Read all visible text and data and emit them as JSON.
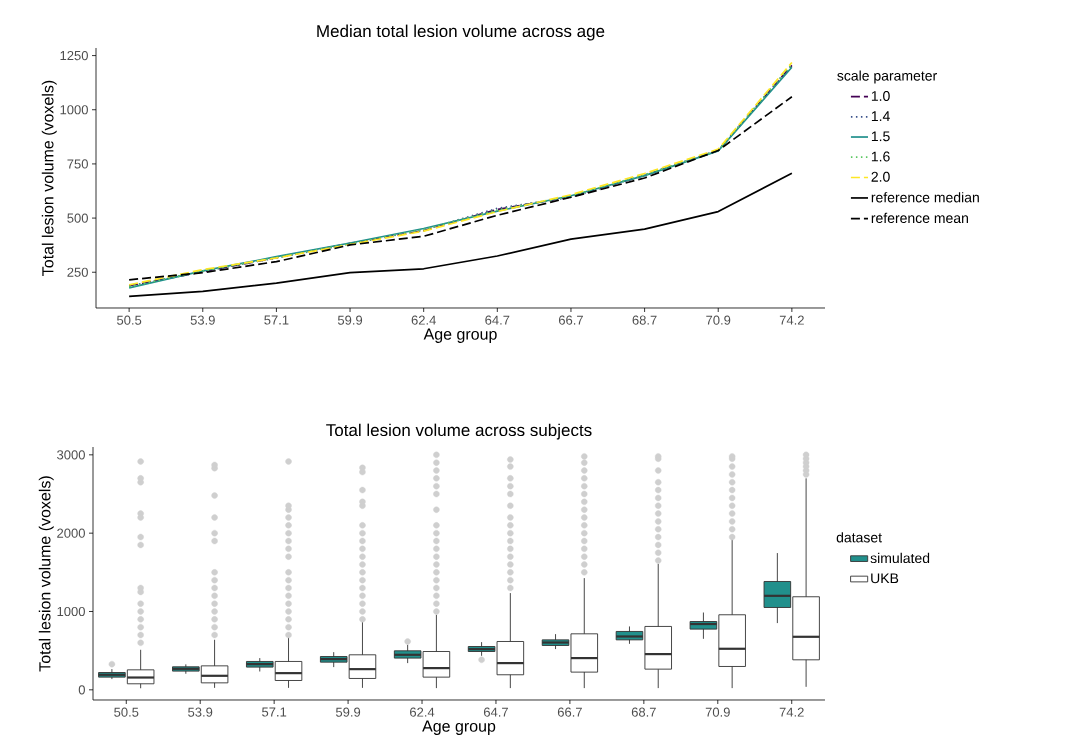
{
  "chart_data": [
    {
      "type": "line",
      "title": "Median total lesion volume across age",
      "xlabel": "Age group",
      "ylabel": "Total lesion volume (voxels)",
      "legend_title": "scale parameter",
      "legend": "right",
      "categories": [
        "50.5",
        "53.9",
        "57.1",
        "59.9",
        "62.4",
        "64.7",
        "66.7",
        "68.7",
        "70.9",
        "74.2"
      ],
      "ylim": [
        85,
        1285
      ],
      "yticks": [
        250,
        500,
        750,
        1000,
        1250
      ],
      "series": [
        {
          "name": "1.0",
          "color": "#440154",
          "line_style": "dashed",
          "values": [
            188,
            252,
            318,
            383,
            442,
            540,
            598,
            697,
            812,
            1205
          ]
        },
        {
          "name": "1.4",
          "color": "#3b528b",
          "line_style": "dotted",
          "values": [
            186,
            254,
            316,
            381,
            445,
            545,
            596,
            699,
            813,
            1207
          ]
        },
        {
          "name": "1.5",
          "color": "#21908c",
          "line_style": "solid",
          "values": [
            178,
            256,
            322,
            385,
            452,
            532,
            603,
            696,
            810,
            1196
          ]
        },
        {
          "name": "1.6",
          "color": "#5dc863",
          "line_style": "dotted",
          "values": [
            183,
            255,
            318,
            382,
            447,
            537,
            602,
            700,
            812,
            1210
          ]
        },
        {
          "name": "2.0",
          "color": "#fde725",
          "line_style": "dashed",
          "values": [
            192,
            262,
            316,
            378,
            440,
            530,
            608,
            706,
            818,
            1218
          ]
        },
        {
          "name": "reference median",
          "color": "#000000",
          "line_style": "solid",
          "values": [
            139,
            162,
            200,
            248,
            266,
            325,
            403,
            449,
            530,
            707
          ]
        },
        {
          "name": "reference mean",
          "color": "#000000",
          "line_style": "dashed",
          "values": [
            215,
            248,
            299,
            376,
            416,
            513,
            596,
            685,
            812,
            1060
          ]
        }
      ]
    },
    {
      "type": "box",
      "title": "Total lesion volume across subjects",
      "xlabel": "Age group",
      "ylabel": "Total lesion volume (voxels)",
      "legend_title": "dataset",
      "legend": "right",
      "categories": [
        "50.5",
        "53.9",
        "57.1",
        "59.9",
        "62.4",
        "64.7",
        "66.7",
        "68.7",
        "70.9",
        "74.2"
      ],
      "ylim": [
        -130,
        3100
      ],
      "yticks": [
        0,
        1000,
        2000,
        3000
      ],
      "series": [
        {
          "name": "simulated",
          "color": "#21908c",
          "boxes": [
            {
              "low": 137,
              "q1": 162,
              "median": 192,
              "q3": 221,
              "high": 264,
              "outliers": [
                328
              ]
            },
            {
              "low": 205,
              "q1": 239,
              "median": 268,
              "q3": 294,
              "high": 325
            },
            {
              "low": 234,
              "q1": 290,
              "median": 328,
              "q3": 362,
              "high": 405
            },
            {
              "low": 290,
              "q1": 353,
              "median": 392,
              "q3": 425,
              "high": 481
            },
            {
              "low": 341,
              "q1": 405,
              "median": 447,
              "q3": 498,
              "high": 575,
              "outliers": [
                617
              ]
            },
            {
              "low": 434,
              "q1": 489,
              "median": 519,
              "q3": 553,
              "high": 609,
              "outliers": [
                383
              ]
            },
            {
              "low": 520,
              "q1": 566,
              "median": 604,
              "q3": 638,
              "high": 711
            },
            {
              "low": 587,
              "q1": 638,
              "median": 681,
              "q3": 745,
              "high": 809
            },
            {
              "low": 651,
              "q1": 775,
              "median": 840,
              "q3": 872,
              "high": 987
            },
            {
              "low": 852,
              "q1": 1051,
              "median": 1200,
              "q3": 1383,
              "high": 1746
            }
          ]
        },
        {
          "name": "UKB",
          "color": "#ffffff",
          "boxes": [
            {
              "low": 20,
              "q1": 77,
              "median": 157,
              "q3": 255,
              "high": 511,
              "outliers": [
                600,
                700,
                800,
                900,
                1000,
                1100,
                1250,
                1300,
                1850,
                1950,
                2200,
                2250,
                2650,
                2700,
                2915
              ]
            },
            {
              "low": 25,
              "q1": 89,
              "median": 179,
              "q3": 306,
              "high": 639,
              "outliers": [
                700,
                800,
                900,
                1000,
                1100,
                1200,
                1300,
                1400,
                1500,
                1900,
                2000,
                2200,
                2480,
                2830,
                2870
              ]
            },
            {
              "low": 25,
              "q1": 119,
              "median": 213,
              "q3": 362,
              "high": 681,
              "outliers": [
                700,
                800,
                900,
                1000,
                1100,
                1200,
                1300,
                1400,
                1500,
                1700,
                1800,
                1900,
                2000,
                2100,
                2200,
                2300,
                2350,
                2915
              ]
            },
            {
              "low": 25,
              "q1": 145,
              "median": 264,
              "q3": 447,
              "high": 872,
              "outliers": [
                900,
                1000,
                1100,
                1200,
                1300,
                1400,
                1500,
                1600,
                1700,
                1800,
                1900,
                2000,
                2100,
                2350,
                2400,
                2550,
                2780,
                2835
              ]
            },
            {
              "low": 22,
              "q1": 162,
              "median": 277,
              "q3": 489,
              "high": 958,
              "outliers": [
                1000,
                1100,
                1200,
                1300,
                1400,
                1500,
                1600,
                1700,
                1800,
                1900,
                2000,
                2100,
                2300,
                2500,
                2600,
                2700,
                2800,
                2900,
                3000
              ]
            },
            {
              "low": 22,
              "q1": 192,
              "median": 341,
              "q3": 617,
              "high": 1235,
              "outliers": [
                1300,
                1400,
                1500,
                1600,
                1700,
                1800,
                1900,
                2000,
                2100,
                2200,
                2350,
                2500,
                2600,
                2700,
                2850,
                2940
              ]
            },
            {
              "low": 22,
              "q1": 226,
              "median": 405,
              "q3": 715,
              "high": 1426,
              "outliers": [
                1500,
                1600,
                1700,
                1800,
                1900,
                2000,
                2100,
                2200,
                2300,
                2400,
                2500,
                2600,
                2700,
                2800,
                2900,
                2980
              ]
            },
            {
              "low": 22,
              "q1": 264,
              "median": 456,
              "q3": 809,
              "high": 1609,
              "outliers": [
                1650,
                1750,
                1850,
                1950,
                2050,
                2150,
                2250,
                2350,
                2450,
                2550,
                2650,
                2800,
                2950,
                2980
              ]
            },
            {
              "low": 22,
              "q1": 298,
              "median": 524,
              "q3": 958,
              "high": 1925,
              "outliers": [
                1950,
                2050,
                2150,
                2250,
                2350,
                2450,
                2550,
                2650,
                2750,
                2850,
                2950,
                2980
              ]
            },
            {
              "low": 38,
              "q1": 383,
              "median": 677,
              "q3": 1188,
              "high": 2700,
              "outliers": [
                2750,
                2800,
                2850,
                2900,
                2950,
                3000
              ]
            }
          ]
        }
      ]
    }
  ]
}
